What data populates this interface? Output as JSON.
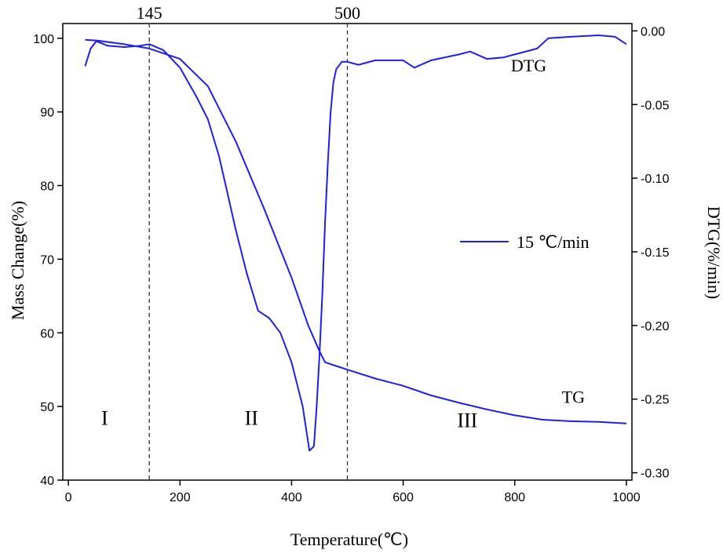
{
  "chart_data": {
    "type": "line",
    "xlabel": "Temperature(℃)",
    "ylabel_left": "Mass Change(%)",
    "ylabel_right": "DTG(%/min)",
    "xlim": [
      -10,
      1010
    ],
    "ylim_left": [
      40,
      102
    ],
    "ylim_right": [
      -0.305,
      0.005
    ],
    "x_ticks": [
      0,
      200,
      400,
      600,
      800,
      1000
    ],
    "y_ticks_left": [
      40,
      50,
      60,
      70,
      80,
      90,
      100
    ],
    "y_ticks_right": [
      "0.00",
      "-0.05",
      "-0.10",
      "-0.15",
      "-0.20",
      "-0.25",
      "-0.30"
    ],
    "y_tick_values_right": [
      0.0,
      -0.05,
      -0.1,
      -0.15,
      -0.2,
      -0.25,
      -0.3
    ],
    "legend": {
      "label": "15 ℃/min",
      "placement": "right-center"
    },
    "line_color": "#1f1fe6",
    "grid": false,
    "vlines": [
      {
        "x": 145,
        "label": "145"
      },
      {
        "x": 500,
        "label": "500"
      }
    ],
    "stage_labels": [
      {
        "text": "I",
        "x": 65,
        "y": 47.5
      },
      {
        "text": "II",
        "x": 328,
        "y": 47.5
      },
      {
        "text": "III",
        "x": 715,
        "y": 47.2
      }
    ],
    "curve_labels": [
      {
        "text": "DTG",
        "x": 825,
        "y": 95.5
      },
      {
        "text": "TG",
        "x": 905,
        "y": 50.5
      }
    ],
    "series": [
      {
        "name": "TG",
        "axis": "left",
        "x": [
          30,
          50,
          100,
          145,
          200,
          250,
          300,
          350,
          400,
          430,
          450,
          460,
          480,
          500,
          550,
          600,
          650,
          700,
          750,
          800,
          850,
          900,
          950,
          1000
        ],
        "y": [
          99.8,
          99.7,
          99.2,
          98.6,
          97.2,
          93.5,
          86.0,
          77.0,
          67.5,
          61.0,
          57.5,
          56.0,
          55.5,
          55.0,
          53.8,
          52.8,
          51.5,
          50.5,
          49.6,
          48.8,
          48.2,
          48.0,
          47.9,
          47.7
        ]
      },
      {
        "name": "DTG",
        "axis": "right",
        "x": [
          30,
          40,
          50,
          70,
          100,
          130,
          145,
          170,
          200,
          230,
          250,
          270,
          285,
          300,
          320,
          340,
          360,
          380,
          400,
          420,
          432,
          440,
          445,
          450,
          455,
          460,
          465,
          470,
          475,
          480,
          490,
          500,
          520,
          550,
          600,
          620,
          650,
          700,
          720,
          750,
          780,
          800,
          840,
          860,
          900,
          950,
          980,
          1000
        ],
        "y": [
          -0.024,
          -0.012,
          -0.007,
          -0.01,
          -0.011,
          -0.01,
          -0.009,
          -0.013,
          -0.025,
          -0.045,
          -0.06,
          -0.085,
          -0.11,
          -0.135,
          -0.165,
          -0.19,
          -0.195,
          -0.205,
          -0.225,
          -0.255,
          -0.285,
          -0.282,
          -0.255,
          -0.22,
          -0.18,
          -0.13,
          -0.09,
          -0.055,
          -0.035,
          -0.026,
          -0.021,
          -0.021,
          -0.023,
          -0.02,
          -0.02,
          -0.025,
          -0.02,
          -0.016,
          -0.014,
          -0.019,
          -0.018,
          -0.016,
          -0.012,
          -0.005,
          -0.004,
          -0.003,
          -0.004,
          -0.009
        ]
      }
    ]
  }
}
